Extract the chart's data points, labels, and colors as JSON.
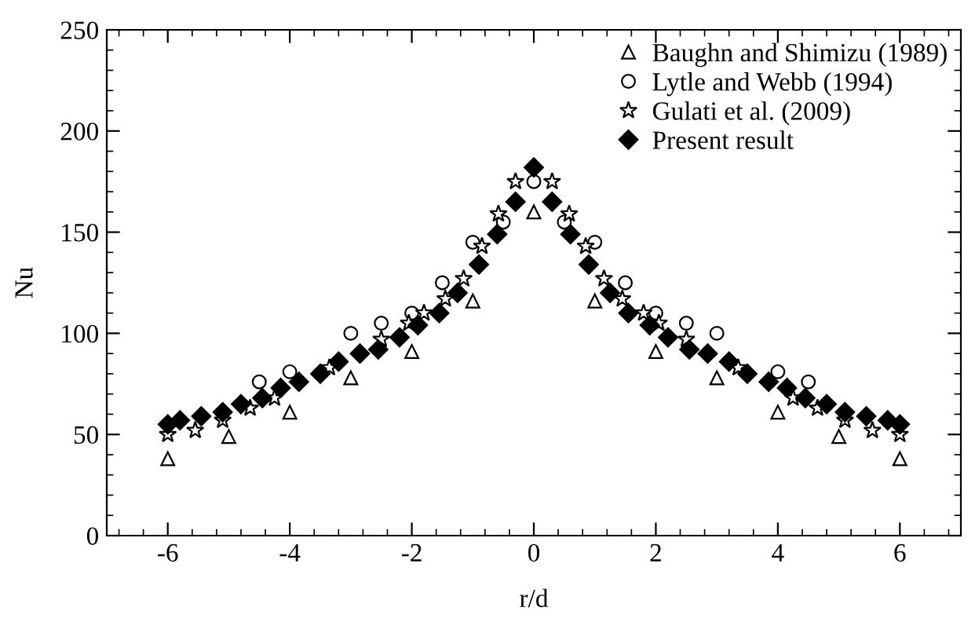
{
  "chart_data": {
    "type": "scatter",
    "xlabel": "r/d",
    "ylabel": "Nu",
    "xlim": [
      -7,
      7
    ],
    "xticks": [
      -6,
      -4,
      -2,
      0,
      2,
      4,
      6
    ],
    "ylim": [
      0,
      250
    ],
    "yticks": [
      0,
      50,
      100,
      150,
      200,
      250
    ],
    "grid": false,
    "legend": "top right",
    "series": [
      {
        "name": "Baughn and Shimizu (1989)",
        "color": "#000000",
        "marker": "triangle",
        "x": [
          -6,
          -5,
          -4,
          -3,
          -2,
          -1,
          0,
          1,
          2,
          3,
          4,
          5,
          6
        ],
        "values": [
          38,
          49,
          61,
          78,
          91,
          116,
          160,
          116,
          91,
          78,
          61,
          49,
          38
        ]
      },
      {
        "name": "Lytle and Webb (1994)",
        "color": "#000000",
        "marker": "circle",
        "x": [
          -4.5,
          -4,
          -3,
          -2.5,
          -2,
          -1.5,
          -1,
          -0.5,
          0,
          0.5,
          1,
          1.5,
          2,
          2.5,
          3,
          4,
          4.5
        ],
        "values": [
          76,
          81,
          100,
          105,
          110,
          125,
          145,
          155,
          175,
          155,
          145,
          125,
          110,
          105,
          100,
          81,
          76
        ]
      },
      {
        "name": "Gulati et al. (2009)",
        "color": "#000000",
        "marker": "star",
        "x": [
          -6,
          -5.55,
          -5.1,
          -4.65,
          -4.25,
          -3.35,
          -2.5,
          -2.05,
          -1.8,
          -1.45,
          -1.15,
          -0.85,
          -0.58,
          -0.3,
          0.3,
          0.58,
          0.85,
          1.15,
          1.45,
          1.8,
          2.05,
          2.5,
          3.35,
          4.25,
          4.65,
          5.1,
          5.55,
          6
        ],
        "values": [
          50,
          52,
          57,
          63,
          68,
          83,
          97,
          105,
          110,
          117,
          127,
          143,
          159,
          175,
          175,
          159,
          143,
          127,
          117,
          110,
          105,
          97,
          83,
          68,
          63,
          57,
          52,
          50
        ]
      },
      {
        "name": "Present result",
        "color": "#000000",
        "marker": "diamond",
        "x": [
          -6,
          -5.8,
          -5.45,
          -5.1,
          -4.8,
          -4.45,
          -4.15,
          -3.85,
          -3.5,
          -3.2,
          -2.85,
          -2.55,
          -2.2,
          -1.9,
          -1.55,
          -1.25,
          -0.9,
          -0.6,
          -0.3,
          0,
          0.3,
          0.6,
          0.9,
          1.25,
          1.55,
          1.9,
          2.2,
          2.55,
          2.85,
          3.2,
          3.5,
          3.85,
          4.15,
          4.45,
          4.8,
          5.1,
          5.45,
          5.8,
          6
        ],
        "values": [
          55,
          57,
          59,
          61,
          65,
          68,
          73,
          76,
          80,
          86,
          90,
          92,
          98,
          104,
          110,
          120,
          134,
          149,
          165,
          182,
          165,
          149,
          134,
          120,
          110,
          104,
          98,
          92,
          90,
          86,
          80,
          76,
          73,
          68,
          65,
          61,
          59,
          57,
          55
        ]
      }
    ]
  }
}
